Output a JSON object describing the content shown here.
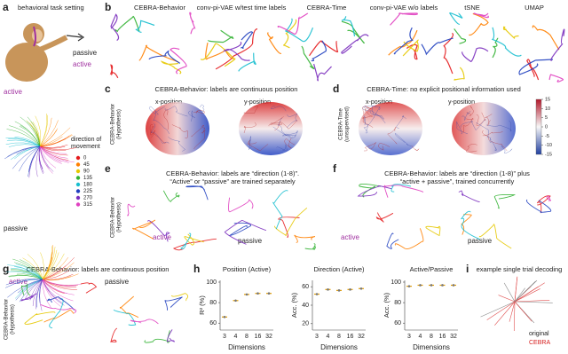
{
  "panel_a": {
    "letter": "a",
    "title": "behavioral task setting",
    "passive_label": "passive",
    "active_label": "active",
    "active_heading": "active",
    "passive_heading": "passive",
    "legend_title": [
      "direction of",
      "movement"
    ],
    "legend": [
      {
        "label": 0,
        "color": "#e41a1c"
      },
      {
        "label": 45,
        "color": "#ff7f00"
      },
      {
        "label": 90,
        "color": "#e6c800"
      },
      {
        "label": 135,
        "color": "#33b233"
      },
      {
        "label": 180,
        "color": "#17becf"
      },
      {
        "label": 225,
        "color": "#1f3fbf"
      },
      {
        "label": 270,
        "color": "#7b2fbe"
      },
      {
        "label": 315,
        "color": "#e040c0"
      }
    ]
  },
  "panel_b": {
    "letter": "b",
    "labels": [
      "CEBRA-Behavior",
      "conv-pi-VAE w/test time labels",
      "CEBRA-Time",
      "conv-pi-VAE w/o labels",
      "tSNE",
      "UMAP"
    ]
  },
  "panel_c": {
    "letter": "c",
    "title": "CEBRA-Behavior: labels are continuous position",
    "left": "x-position",
    "right": "y-position",
    "ylabel": [
      "CEBRA-Behavior",
      "(Hypothesis)"
    ]
  },
  "panel_d": {
    "letter": "d",
    "title": "CEBRA-Time: no explicit positional information used",
    "left": "x-position",
    "right": "y-position",
    "ylabel": [
      "CEBRA-Time",
      "(unsupervised)"
    ],
    "clim": [
      -15,
      15
    ],
    "colorbar_ticks": [
      15,
      10,
      5,
      0,
      -5,
      -10,
      -15
    ]
  },
  "panel_e": {
    "letter": "e",
    "title": [
      "CEBRA-Behavior: labels are “direction (1-8)”.",
      "“Active” or “passive” are trained separately"
    ],
    "active": "active",
    "passive": "passive",
    "ylabel": [
      "CEBRA-Behavior",
      "(Hypothesis)"
    ]
  },
  "panel_f": {
    "letter": "f",
    "title": [
      "CEBRA-Behavior: labels are “direction (1-8)” plus",
      "“active + passive”, trained concurrently"
    ],
    "active": "active",
    "passive": "passive"
  },
  "panel_g": {
    "letter": "g",
    "title": "CEBRA-Behavior: labels are continuous position",
    "active": "active",
    "passive": "passive",
    "ylabel": [
      "CEBRA-Behavior",
      "(Hypothesis)"
    ]
  },
  "panel_h": {
    "letter": "h",
    "xlabel": "Dimensions",
    "charts": [
      {
        "type": "scatter",
        "title": "Position (Active)",
        "ylabel": "R² (%)",
        "categories": [
          "3",
          "4",
          "8",
          "16",
          "32"
        ],
        "values": [
          66,
          82,
          88,
          89,
          89
        ],
        "color": "#e69f00",
        "ylim": [
          55,
          100
        ],
        "yticks": [
          60,
          80,
          100
        ]
      },
      {
        "type": "scatter",
        "title": "Direction (Active)",
        "ylabel": "Acc. (%)",
        "categories": [
          "3",
          "4",
          "8",
          "16",
          "32"
        ],
        "values": [
          52,
          57,
          56,
          57,
          58
        ],
        "color": "#e69f00",
        "ylim": [
          15,
          65
        ],
        "yticks": [
          20,
          40,
          60
        ]
      },
      {
        "type": "scatter",
        "title": "Active/Passive",
        "ylabel": "Acc. (%)",
        "categories": [
          "3",
          "4",
          "8",
          "16",
          "32"
        ],
        "values": [
          96,
          97,
          97,
          97,
          97
        ],
        "color": "#e69f00",
        "ylim": [
          55,
          100
        ],
        "yticks": [
          60,
          80,
          100
        ]
      }
    ]
  },
  "panel_i": {
    "letter": "i",
    "title": "example single trial decoding",
    "original": "original",
    "cebra": "CEBRA"
  }
}
